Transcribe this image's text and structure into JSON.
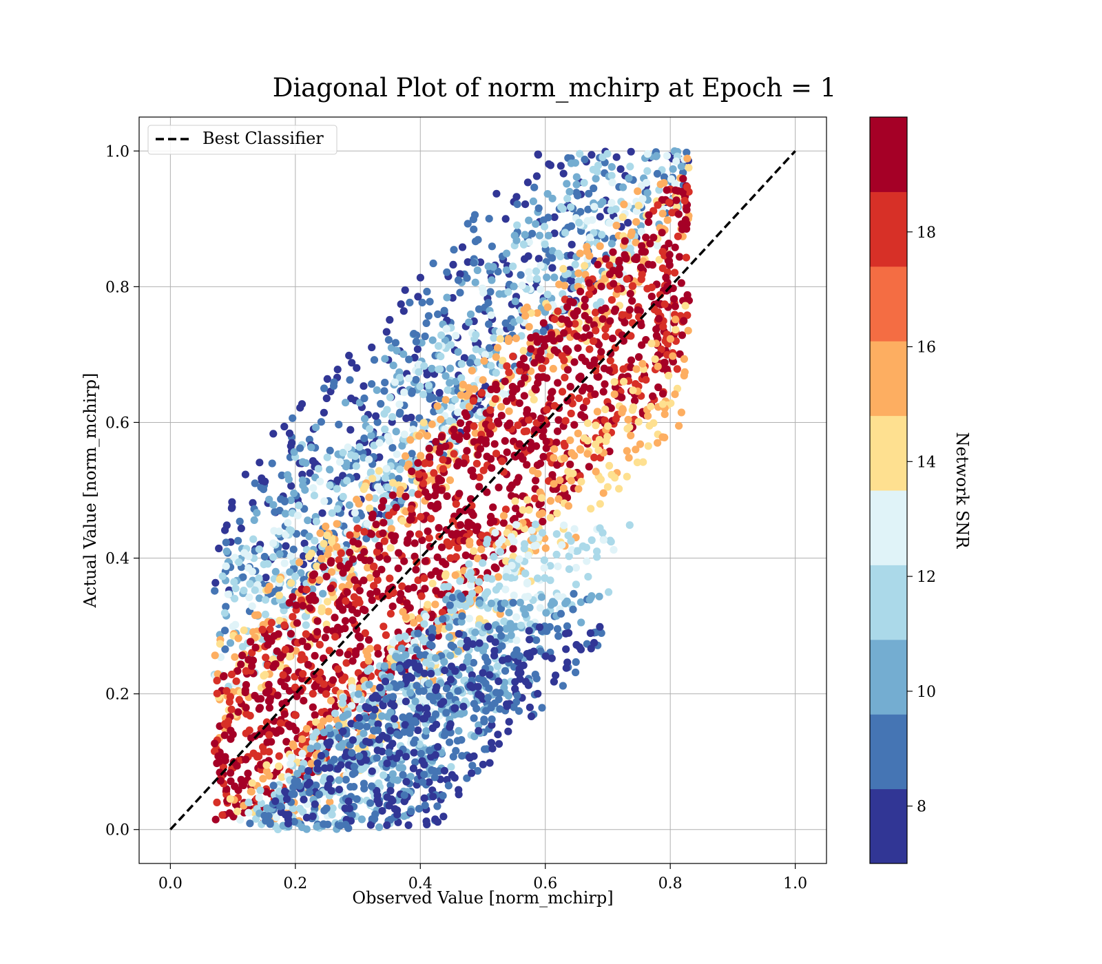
{
  "chart_data": {
    "type": "scatter",
    "title": "Diagonal Plot of norm_mchirp at Epoch = 1",
    "xlabel": "Observed Value [norm_mchirp]",
    "ylabel": "Actual Value [norm_mchirp]",
    "xlim": [
      -0.05,
      1.05
    ],
    "ylim": [
      -0.05,
      1.05
    ],
    "xticks": [
      "0.0",
      "0.2",
      "0.4",
      "0.6",
      "0.8",
      "1.0"
    ],
    "yticks": [
      "0.0",
      "0.2",
      "0.4",
      "0.6",
      "0.8",
      "1.0"
    ],
    "grid": true,
    "legend": {
      "placement": "top-left",
      "entries": [
        "Best Classifier"
      ]
    },
    "reference_line": {
      "name": "Best Classifier",
      "style": "dashed",
      "color": "#000000",
      "x": [
        0,
        1
      ],
      "y": [
        0,
        1
      ]
    },
    "colorbar": {
      "label": "Network SNR",
      "range": [
        7,
        20
      ],
      "ticks": [
        "8",
        "10",
        "12",
        "14",
        "16",
        "18"
      ],
      "colors": [
        "#313695",
        "#4575b4",
        "#74add1",
        "#abd9e9",
        "#e0f3f8",
        "#fee090",
        "#fdae61",
        "#f46d43",
        "#d73027",
        "#a50026"
      ]
    },
    "point_clouds": [
      {
        "description_snr": 8,
        "x_minus_y": [
          -0.42,
          -0.12
        ],
        "y": [
          0.35,
          1.0
        ]
      },
      {
        "description_snr": 10,
        "x_minus_y": [
          -0.36,
          -0.1
        ],
        "y": [
          0.25,
          1.0
        ]
      },
      {
        "description_snr": 12,
        "x_minus_y": [
          -0.3,
          -0.08
        ],
        "y": [
          0.2,
          1.0
        ]
      },
      {
        "description_snr": 15,
        "x_minus_y": [
          -0.2,
          -0.05
        ],
        "y": [
          0.1,
          1.0
        ]
      },
      {
        "description_snr": 19,
        "x_minus_y": [
          -0.15,
          0.15
        ],
        "y": [
          0.01,
          1.0
        ]
      },
      {
        "description_snr": 15,
        "x_minus_y": [
          0.05,
          0.22
        ],
        "y": [
          0.01,
          0.9
        ]
      },
      {
        "description_snr": 12,
        "x_minus_y": [
          0.08,
          0.3
        ],
        "y": [
          0.0,
          0.45
        ]
      },
      {
        "description_snr": 10,
        "x_minus_y": [
          0.1,
          0.36
        ],
        "y": [
          0.0,
          0.35
        ]
      },
      {
        "description_snr": 8,
        "x_minus_y": [
          0.12,
          0.42
        ],
        "y": [
          0.0,
          0.3
        ]
      }
    ]
  }
}
